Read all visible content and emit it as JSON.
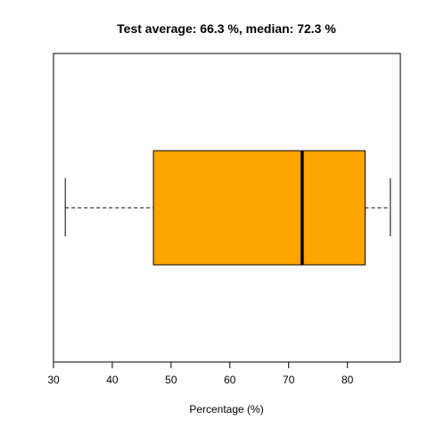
{
  "chart_data": {
    "type": "boxplot",
    "orientation": "horizontal",
    "title": "Test average: 66.3 %, median: 72.3 %",
    "xlabel": "Percentage (%)",
    "ylabel": "",
    "xlim": [
      30,
      89
    ],
    "x_ticks": [
      30,
      40,
      50,
      60,
      70,
      80
    ],
    "x_tick_labels": [
      "30",
      "40",
      "50",
      "60",
      "70",
      "80"
    ],
    "box": {
      "min": 32,
      "q1": 47,
      "median": 72.3,
      "q3": 83,
      "max": 87.3
    },
    "box_color": "#FFA500",
    "grid": false,
    "legend": "none"
  }
}
